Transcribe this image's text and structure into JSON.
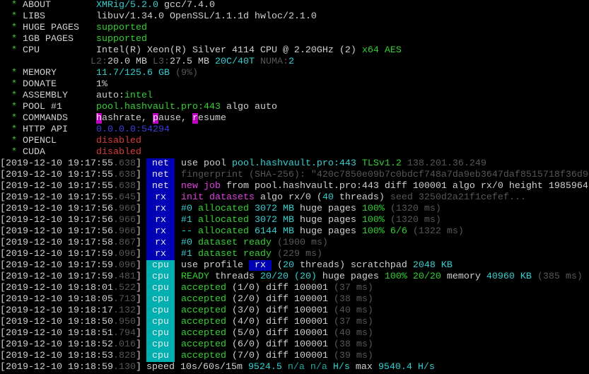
{
  "colors": {
    "white": "#d0d0d0",
    "green": "#30d030",
    "cyan": "#30d0d0",
    "gray": "#585858",
    "magenta": "#e040e0",
    "blue": "#3c3cdc",
    "red": "#d83a3a",
    "tag_net_rx_bg": "#0000b4",
    "tag_cpu_bg": "#00b0b0"
  },
  "info": [
    {
      "star": "*",
      "label": "ABOUT",
      "segs": [
        {
          "t": "XMRig/5.2.0",
          "c": "c"
        },
        {
          "t": " gcc/7.4.0",
          "c": "w"
        }
      ]
    },
    {
      "star": "*",
      "label": "LIBS",
      "segs": [
        {
          "t": "libuv/1.34.0 OpenSSL/1.1.1d hwloc/2.1.0",
          "c": "w"
        }
      ]
    },
    {
      "star": "*",
      "label": "HUGE PAGES",
      "segs": [
        {
          "t": "supported",
          "c": "g"
        }
      ]
    },
    {
      "star": "*",
      "label": "1GB PAGES",
      "segs": [
        {
          "t": "supported",
          "c": "g"
        }
      ]
    },
    {
      "star": "*",
      "label": "CPU",
      "segs": [
        {
          "t": "Intel(R) Xeon(R) Silver 4114 CPU @ 2.20GHz (2)",
          "c": "w"
        },
        {
          "t": " x64 AES",
          "c": "g"
        }
      ]
    },
    {
      "star": "",
      "label": "",
      "segs": [
        {
          "t": "L2:",
          "c": "d"
        },
        {
          "t": "20.0 MB",
          "c": "w"
        },
        {
          "t": " L3:",
          "c": "d"
        },
        {
          "t": "27.5 MB",
          "c": "w"
        },
        {
          "t": " 20C/40T",
          "c": "c"
        },
        {
          "t": " NUMA:",
          "c": "d"
        },
        {
          "t": "2",
          "c": "c"
        }
      ]
    },
    {
      "star": "*",
      "label": "MEMORY",
      "segs": [
        {
          "t": "11.7/125.6 GB",
          "c": "c"
        },
        {
          "t": " (9%)",
          "c": "d"
        }
      ]
    },
    {
      "star": "*",
      "label": "DONATE",
      "segs": [
        {
          "t": "1%",
          "c": "w"
        }
      ]
    },
    {
      "star": "*",
      "label": "ASSEMBLY",
      "segs": [
        {
          "t": "auto:",
          "c": "w"
        },
        {
          "t": "intel",
          "c": "g"
        }
      ]
    },
    {
      "star": "*",
      "label": "POOL #1",
      "segs": [
        {
          "t": "pool.hashvault.pro:443",
          "c": "g"
        },
        {
          "t": " algo auto",
          "c": "w"
        }
      ]
    },
    {
      "star": "*",
      "label": "COMMANDS",
      "segs": [
        {
          "t": "h",
          "c": "hl"
        },
        {
          "t": "ashrate, ",
          "c": "w"
        },
        {
          "t": "p",
          "c": "hl"
        },
        {
          "t": "ause, ",
          "c": "w"
        },
        {
          "t": "r",
          "c": "hl"
        },
        {
          "t": "esume",
          "c": "w"
        }
      ]
    },
    {
      "star": "*",
      "label": "HTTP API",
      "segs": [
        {
          "t": "0.0.0.0:54294",
          "c": "b"
        }
      ]
    },
    {
      "star": "*",
      "label": "OPENCL",
      "segs": [
        {
          "t": "disabled",
          "c": "r"
        }
      ]
    },
    {
      "star": "*",
      "label": "CUDA",
      "segs": [
        {
          "t": "disabled",
          "c": "r"
        }
      ]
    }
  ],
  "log": [
    {
      "ts": "[2019-12-10 19:17:55",
      "ms": ".638",
      "end": "]",
      "tag": "net",
      "tagc": "tag-blue",
      "segs": [
        {
          "t": "use pool ",
          "c": "w"
        },
        {
          "t": "pool.hashvault.pro:443",
          "c": "c"
        },
        {
          "t": " TLSv1.2",
          "c": "g"
        },
        {
          "t": " 138.201.36.249",
          "c": "d"
        }
      ]
    },
    {
      "ts": "[2019-12-10 19:17:55",
      "ms": ".638",
      "end": "]",
      "tag": "net",
      "tagc": "tag-blue",
      "segs": [
        {
          "t": "fingerprint (SHA-256): \"420c7850e09b7c0bdcf748a7da9eb3647daf8515718f36d9e",
          "c": "d"
        }
      ]
    },
    {
      "ts": "[2019-12-10 19:17:55",
      "ms": ".638",
      "end": "]",
      "tag": "net",
      "tagc": "tag-blue",
      "segs": [
        {
          "t": "new job",
          "c": "m"
        },
        {
          "t": " from pool.hashvault.pro:443 diff 100001 algo rx/0 height 1985964",
          "c": "w"
        }
      ]
    },
    {
      "ts": "[2019-12-10 19:17:55",
      "ms": ".645",
      "end": "]",
      "tag": "rx",
      "tagc": "tag-blue",
      "segs": [
        {
          "t": "init datasets",
          "c": "m"
        },
        {
          "t": " algo rx/0 (",
          "c": "w"
        },
        {
          "t": "40",
          "c": "c"
        },
        {
          "t": " threads)",
          "c": "w"
        },
        {
          "t": " seed 3250d2a21f1cefef...",
          "c": "d"
        }
      ]
    },
    {
      "ts": "[2019-12-10 19:17:56",
      "ms": ".966",
      "end": "]",
      "tag": "rx",
      "tagc": "tag-blue",
      "segs": [
        {
          "t": "#0",
          "c": "c"
        },
        {
          "t": " allocated ",
          "c": "g"
        },
        {
          "t": "3072 MB",
          "c": "c"
        },
        {
          "t": " huge pages ",
          "c": "w"
        },
        {
          "t": "100%",
          "c": "g"
        },
        {
          "t": " (1320 ms)",
          "c": "d"
        }
      ]
    },
    {
      "ts": "[2019-12-10 19:17:56",
      "ms": ".966",
      "end": "]",
      "tag": "rx",
      "tagc": "tag-blue",
      "segs": [
        {
          "t": "#1",
          "c": "c"
        },
        {
          "t": " allocated ",
          "c": "g"
        },
        {
          "t": "3072 MB",
          "c": "c"
        },
        {
          "t": " huge pages ",
          "c": "w"
        },
        {
          "t": "100%",
          "c": "g"
        },
        {
          "t": " (1320 ms)",
          "c": "d"
        }
      ]
    },
    {
      "ts": "[2019-12-10 19:17:56",
      "ms": ".966",
      "end": "]",
      "tag": "rx",
      "tagc": "tag-blue",
      "segs": [
        {
          "t": "--",
          "c": "c"
        },
        {
          "t": " allocated ",
          "c": "g"
        },
        {
          "t": "6144 MB",
          "c": "c"
        },
        {
          "t": " huge pages ",
          "c": "w"
        },
        {
          "t": "100% 6/6",
          "c": "g"
        },
        {
          "t": " (1322 ms)",
          "c": "d"
        }
      ]
    },
    {
      "ts": "[2019-12-10 19:17:58",
      "ms": ".867",
      "end": "]",
      "tag": "rx",
      "tagc": "tag-blue",
      "segs": [
        {
          "t": "#0",
          "c": "c"
        },
        {
          "t": " dataset ready",
          "c": "g"
        },
        {
          "t": " (1900 ms)",
          "c": "d"
        }
      ]
    },
    {
      "ts": "[2019-12-10 19:17:59",
      "ms": ".096",
      "end": "]",
      "tag": "rx",
      "tagc": "tag-blue",
      "segs": [
        {
          "t": "#1",
          "c": "c"
        },
        {
          "t": " dataset ready",
          "c": "g"
        },
        {
          "t": " (229 ms)",
          "c": "d"
        }
      ]
    },
    {
      "ts": "[2019-12-10 19:17:59",
      "ms": ".096",
      "end": "]",
      "tag": "cpu",
      "tagc": "tag-cyan",
      "segs": [
        {
          "t": "use profile ",
          "c": "w"
        },
        {
          "t": " rx ",
          "c": "tagrx"
        },
        {
          "t": " (",
          "c": "w"
        },
        {
          "t": "20",
          "c": "c"
        },
        {
          "t": " threads) scratchpad ",
          "c": "w"
        },
        {
          "t": "2048 KB",
          "c": "c"
        }
      ]
    },
    {
      "ts": "[2019-12-10 19:17:59",
      "ms": ".481",
      "end": "]",
      "tag": "cpu",
      "tagc": "tag-cyan",
      "segs": [
        {
          "t": "READY",
          "c": "g"
        },
        {
          "t": " threads ",
          "c": "w"
        },
        {
          "t": "20/20 (20)",
          "c": "c"
        },
        {
          "t": " huge pages ",
          "c": "w"
        },
        {
          "t": "100% 20/20",
          "c": "g"
        },
        {
          "t": " memory ",
          "c": "w"
        },
        {
          "t": "40960 KB",
          "c": "c"
        },
        {
          "t": " (385 ms)",
          "c": "d"
        }
      ]
    },
    {
      "ts": "[2019-12-10 19:18:01",
      "ms": ".522",
      "end": "]",
      "tag": "cpu",
      "tagc": "tag-cyan",
      "segs": [
        {
          "t": "accepted",
          "c": "g"
        },
        {
          "t": " (1/0) diff 100001",
          "c": "w"
        },
        {
          "t": " (37 ms)",
          "c": "d"
        }
      ]
    },
    {
      "ts": "[2019-12-10 19:18:05",
      "ms": ".713",
      "end": "]",
      "tag": "cpu",
      "tagc": "tag-cyan",
      "segs": [
        {
          "t": "accepted",
          "c": "g"
        },
        {
          "t": " (2/0) diff 100001",
          "c": "w"
        },
        {
          "t": " (38 ms)",
          "c": "d"
        }
      ]
    },
    {
      "ts": "[2019-12-10 19:18:17",
      "ms": ".132",
      "end": "]",
      "tag": "cpu",
      "tagc": "tag-cyan",
      "segs": [
        {
          "t": "accepted",
          "c": "g"
        },
        {
          "t": " (3/0) diff 100001",
          "c": "w"
        },
        {
          "t": " (40 ms)",
          "c": "d"
        }
      ]
    },
    {
      "ts": "[2019-12-10 19:18:50",
      "ms": ".950",
      "end": "]",
      "tag": "cpu",
      "tagc": "tag-cyan",
      "segs": [
        {
          "t": "accepted",
          "c": "g"
        },
        {
          "t": " (4/0) diff 100001",
          "c": "w"
        },
        {
          "t": " (37 ms)",
          "c": "d"
        }
      ]
    },
    {
      "ts": "[2019-12-10 19:18:51",
      "ms": ".794",
      "end": "]",
      "tag": "cpu",
      "tagc": "tag-cyan",
      "segs": [
        {
          "t": "accepted",
          "c": "g"
        },
        {
          "t": " (5/0) diff 100001",
          "c": "w"
        },
        {
          "t": " (40 ms)",
          "c": "d"
        }
      ]
    },
    {
      "ts": "[2019-12-10 19:18:52",
      "ms": ".016",
      "end": "]",
      "tag": "cpu",
      "tagc": "tag-cyan",
      "segs": [
        {
          "t": "accepted",
          "c": "g"
        },
        {
          "t": " (6/0) diff 100001",
          "c": "w"
        },
        {
          "t": " (38 ms)",
          "c": "d"
        }
      ]
    },
    {
      "ts": "[2019-12-10 19:18:53",
      "ms": ".828",
      "end": "]",
      "tag": "cpu",
      "tagc": "tag-cyan",
      "segs": [
        {
          "t": "accepted",
          "c": "g"
        },
        {
          "t": " (7/0) diff 100001",
          "c": "w"
        },
        {
          "t": " (39 ms)",
          "c": "d"
        }
      ]
    },
    {
      "ts": "[2019-12-10 19:18:59",
      "ms": ".130",
      "end": "]",
      "tag": "",
      "tagc": "tag-none",
      "segs": [
        {
          "t": "speed 10s/60s/15m ",
          "c": "w"
        },
        {
          "t": "9524.5",
          "c": "c"
        },
        {
          "t": " n/a n/a",
          "c": "cd"
        },
        {
          "t": " H/s",
          "c": "c"
        },
        {
          "t": " max ",
          "c": "w"
        },
        {
          "t": "9540.4 H/s",
          "c": "c"
        }
      ]
    }
  ]
}
